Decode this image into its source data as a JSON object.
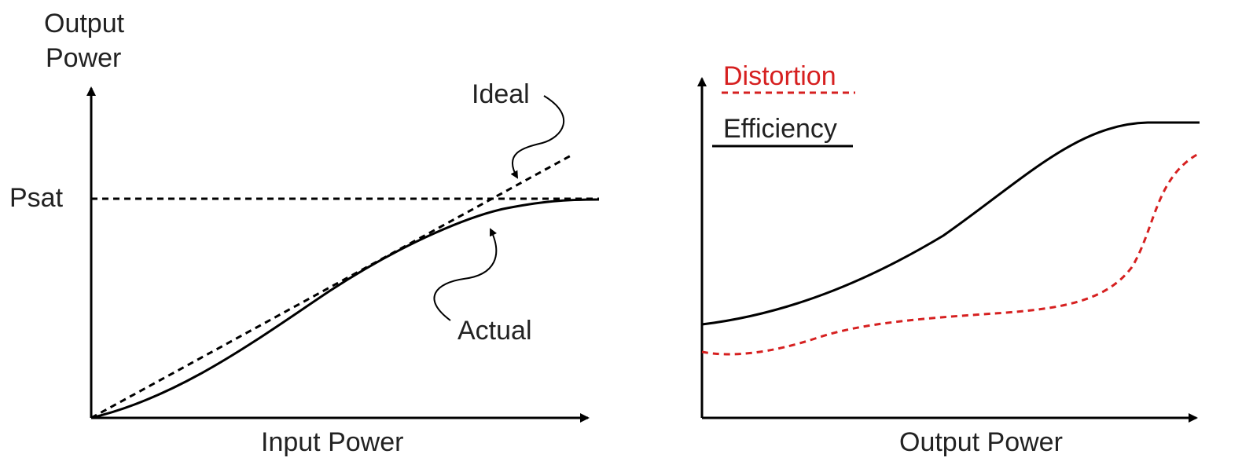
{
  "left_diagram": {
    "y_axis_label_line1": "Output",
    "y_axis_label_line2": "Power",
    "x_axis_label": "Input Power",
    "psat_label": "Psat",
    "ideal_label": "Ideal",
    "actual_label": "Actual"
  },
  "right_diagram": {
    "x_axis_label": "Output Power",
    "legend": {
      "distortion_label": "Distortion",
      "efficiency_label": "Efficiency",
      "distortion_color": "#d62020",
      "efficiency_color": "#000000"
    }
  }
}
